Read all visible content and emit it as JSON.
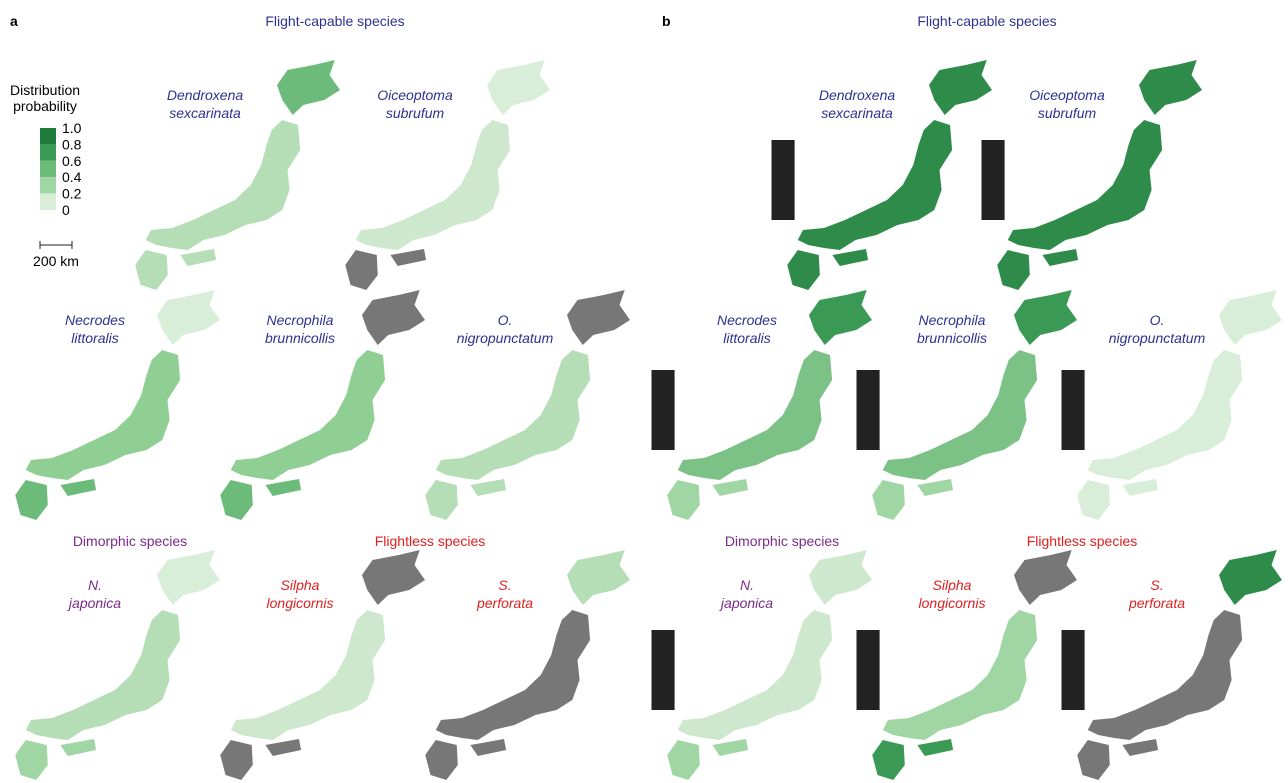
{
  "panels": [
    {
      "label": "a",
      "heading": "Flight-capable species",
      "legend": {
        "title": [
          "Distribution",
          "probability"
        ],
        "ticks": [
          "1.0",
          "0.8",
          "0.6",
          "0.4",
          "0.2",
          "0"
        ]
      },
      "scale_bar": "200 km",
      "groups": [
        "Dimorphic species",
        "Flightless species"
      ],
      "species": [
        [
          "Dendroxena",
          "sexcarinata"
        ],
        [
          "Oiceoptoma",
          "subrufum"
        ],
        [
          "Necrodes",
          "littoralis"
        ],
        [
          "Necrophila",
          "brunnicollis"
        ],
        [
          "O.",
          "nigropunctatum"
        ],
        [
          "N.",
          "japonica"
        ],
        [
          "Silpha",
          "longicornis"
        ],
        [
          "S.",
          "perforata"
        ]
      ]
    },
    {
      "label": "b",
      "heading": "Flight-capable species",
      "groups": [
        "Dimorphic species",
        "Flightless species"
      ],
      "species": [
        [
          "Dendroxena",
          "sexcarinata"
        ],
        [
          "Oiceoptoma",
          "subrufum"
        ],
        [
          "Necrodes",
          "littoralis"
        ],
        [
          "Necrophila",
          "brunnicollis"
        ],
        [
          "O.",
          "nigropunctatum"
        ],
        [
          "N.",
          "japonica"
        ],
        [
          "Silpha",
          "longicornis"
        ],
        [
          "S.",
          "perforata"
        ]
      ]
    }
  ]
}
